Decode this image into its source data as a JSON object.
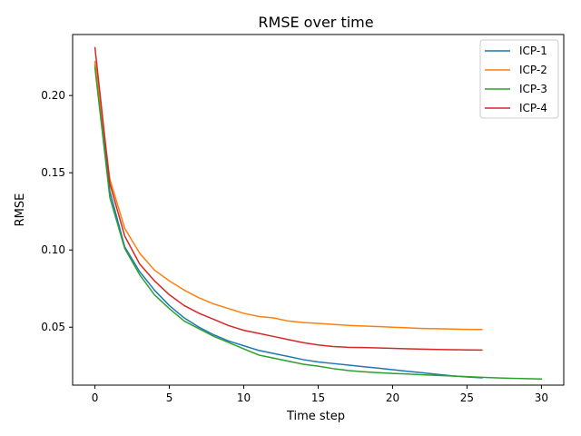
{
  "chart_data": {
    "type": "line",
    "title": "RMSE over time",
    "xlabel": "Time step",
    "ylabel": "RMSE",
    "xlim": [
      -1.5,
      31.5
    ],
    "ylim": [
      0.0125,
      0.2395
    ],
    "xticks": [
      0,
      5,
      10,
      15,
      20,
      25,
      30
    ],
    "xtick_labels": [
      "0",
      "5",
      "10",
      "15",
      "20",
      "25",
      "30"
    ],
    "yticks": [
      0.05,
      0.1,
      0.15,
      0.2
    ],
    "ytick_labels": [
      "0.05",
      "0.10",
      "0.15",
      "0.20"
    ],
    "grid": false,
    "legend_position": "top-right",
    "series": [
      {
        "name": "ICP-1",
        "color": "#1f77b4",
        "x": [
          0,
          1,
          2,
          3,
          4,
          5,
          6,
          7,
          8,
          9,
          10,
          11,
          12,
          13,
          14,
          15,
          16,
          17,
          18,
          19,
          20,
          21,
          22,
          23,
          24,
          25,
          26
        ],
        "y": [
          0.22,
          0.138,
          0.102,
          0.086,
          0.074,
          0.064,
          0.056,
          0.05,
          0.045,
          0.041,
          0.038,
          0.035,
          0.033,
          0.031,
          0.029,
          0.0275,
          0.0265,
          0.0255,
          0.0245,
          0.0235,
          0.0225,
          0.0215,
          0.0205,
          0.0195,
          0.0185,
          0.0178,
          0.0172
        ]
      },
      {
        "name": "ICP-2",
        "color": "#ff7f0e",
        "x": [
          0,
          1,
          2,
          3,
          4,
          5,
          6,
          7,
          8,
          9,
          10,
          11,
          12,
          13,
          14,
          15,
          16,
          17,
          18,
          19,
          20,
          21,
          22,
          23,
          24,
          25,
          26
        ],
        "y": [
          0.222,
          0.146,
          0.114,
          0.098,
          0.087,
          0.08,
          0.074,
          0.069,
          0.065,
          0.062,
          0.059,
          0.057,
          0.056,
          0.054,
          0.053,
          0.0525,
          0.0518,
          0.0512,
          0.0508,
          0.0504,
          0.05,
          0.0496,
          0.0492,
          0.049,
          0.0488,
          0.0486,
          0.0485
        ]
      },
      {
        "name": "ICP-3",
        "color": "#2ca02c",
        "x": [
          0,
          1,
          2,
          3,
          4,
          5,
          6,
          7,
          8,
          9,
          10,
          11,
          12,
          13,
          14,
          15,
          16,
          17,
          18,
          19,
          20,
          21,
          22,
          23,
          24,
          25,
          26,
          27,
          28,
          29,
          30
        ],
        "y": [
          0.218,
          0.134,
          0.101,
          0.084,
          0.071,
          0.062,
          0.054,
          0.049,
          0.044,
          0.04,
          0.036,
          0.032,
          0.03,
          0.028,
          0.026,
          0.0248,
          0.0232,
          0.022,
          0.0212,
          0.0206,
          0.0201,
          0.0197,
          0.0192,
          0.0188,
          0.0184,
          0.018,
          0.0176,
          0.0172,
          0.0169,
          0.0167,
          0.0165
        ]
      },
      {
        "name": "ICP-4",
        "color": "#d62728",
        "x": [
          0,
          1,
          2,
          3,
          4,
          5,
          6,
          7,
          8,
          9,
          10,
          11,
          12,
          13,
          14,
          15,
          16,
          17,
          18,
          19,
          20,
          21,
          22,
          23,
          24,
          25,
          26
        ],
        "y": [
          0.231,
          0.143,
          0.109,
          0.091,
          0.08,
          0.071,
          0.064,
          0.059,
          0.055,
          0.051,
          0.048,
          0.046,
          0.044,
          0.042,
          0.04,
          0.0385,
          0.0375,
          0.037,
          0.0368,
          0.0366,
          0.0363,
          0.036,
          0.0358,
          0.0356,
          0.0354,
          0.0353,
          0.0352
        ]
      }
    ]
  }
}
